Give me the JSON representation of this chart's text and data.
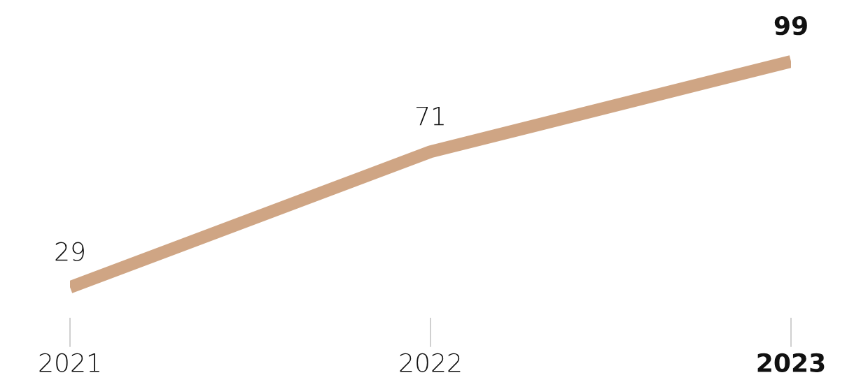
{
  "chart_data": {
    "type": "line",
    "categories": [
      "2021",
      "2022",
      "2023"
    ],
    "series": [
      {
        "color": "#cfa584",
        "values": [
          29,
          71,
          99
        ]
      }
    ],
    "data_labels": true,
    "marker": "none",
    "line_style": "solid"
  }
}
